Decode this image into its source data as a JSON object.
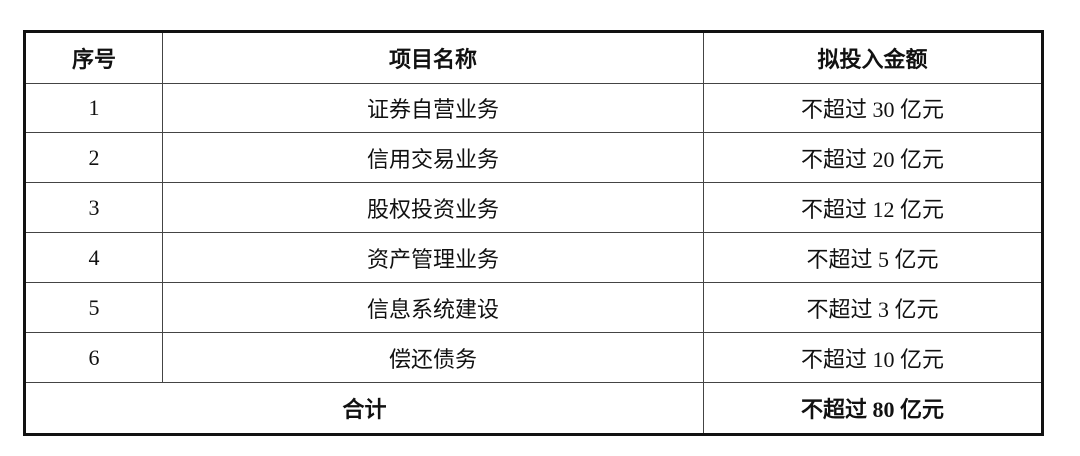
{
  "table": {
    "headers": [
      "序号",
      "项目名称",
      "拟投入金额"
    ],
    "rows": [
      {
        "no": "1",
        "name": "证券自营业务",
        "amount": "不超过 30 亿元"
      },
      {
        "no": "2",
        "name": "信用交易业务",
        "amount": "不超过 20 亿元"
      },
      {
        "no": "3",
        "name": "股权投资业务",
        "amount": "不超过 12 亿元"
      },
      {
        "no": "4",
        "name": "资产管理业务",
        "amount": "不超过 5 亿元"
      },
      {
        "no": "5",
        "name": "信息系统建设",
        "amount": "不超过 3 亿元"
      },
      {
        "no": "6",
        "name": "偿还债务",
        "amount": "不超过 10 亿元"
      }
    ],
    "total": {
      "label": "合计",
      "amount": "不超过 80 亿元"
    }
  }
}
